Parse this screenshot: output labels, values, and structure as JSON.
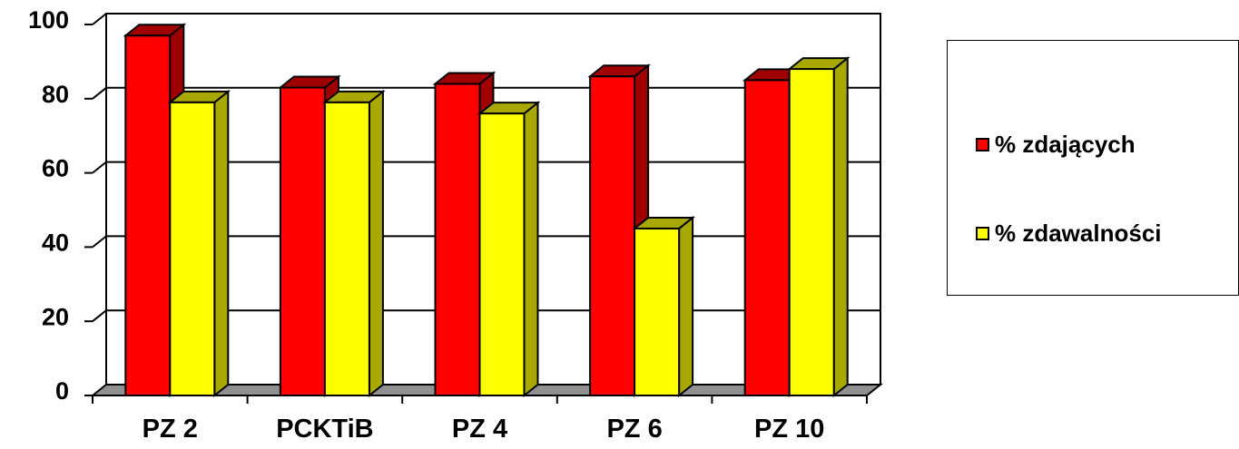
{
  "chart_data": {
    "type": "bar",
    "categories": [
      "PZ 2",
      "PCKTiB",
      "PZ 4",
      "PZ 6",
      "PZ 10"
    ],
    "series": [
      {
        "name": "% zdających",
        "values": [
          97,
          83,
          84,
          86,
          85
        ],
        "color": "#ff0000",
        "side_color": "#a00000"
      },
      {
        "name": "% zdawalności",
        "values": [
          79,
          79,
          76,
          45,
          88
        ],
        "color": "#ffff00",
        "side_color": "#a8a800"
      }
    ],
    "ylim": [
      0,
      100
    ],
    "yticks": [
      "0",
      "20",
      "40",
      "60",
      "80",
      "100"
    ],
    "grid": true,
    "legend_position": "right",
    "floor_color": "#909090"
  }
}
